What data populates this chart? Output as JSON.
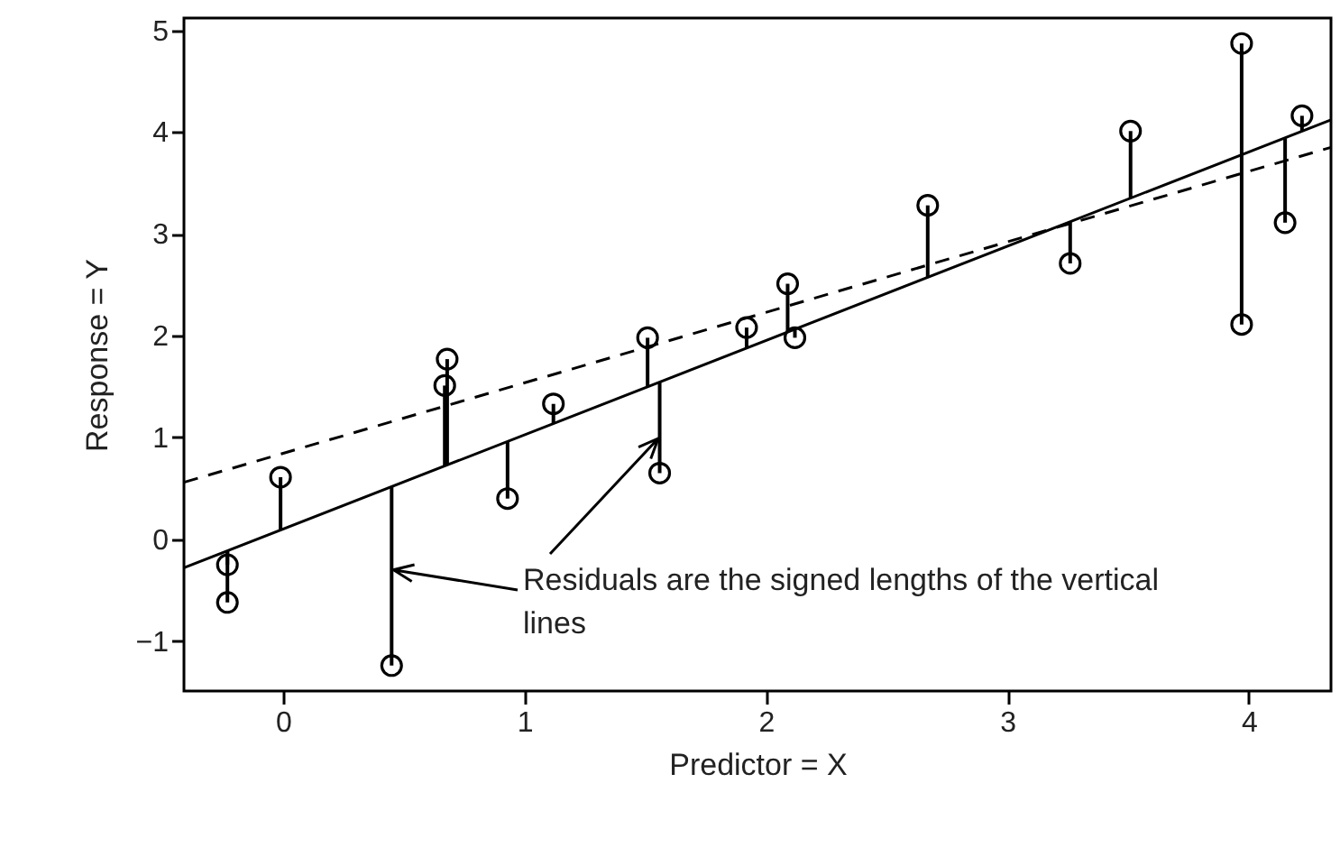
{
  "chart_data": {
    "type": "scatter",
    "xlabel": "Predictor = X",
    "ylabel": "Response = Y",
    "xlim": [
      -0.41,
      4.34
    ],
    "ylim": [
      -1.49,
      5.12
    ],
    "xticks": [
      0,
      1,
      2,
      3,
      4
    ],
    "yticks": [
      -1,
      0,
      1,
      2,
      3,
      4,
      5
    ],
    "grid": false,
    "marker": "circle",
    "annotations": [
      {
        "text": "Residuals are the signed lengths of the vertical lines",
        "x": 0.45,
        "y": -0.3
      }
    ],
    "series": [
      {
        "color": "#000000",
        "x": [
          -0.23,
          -0.23,
          -0.01,
          0.45,
          0.68,
          0.67,
          0.93,
          1.12,
          1.51,
          1.56,
          1.92,
          2.09,
          2.12,
          2.67,
          3.26,
          3.51,
          3.97,
          3.97,
          4.15,
          4.22
        ],
        "values": [
          -0.25,
          -0.62,
          0.61,
          -1.24,
          1.77,
          1.51,
          0.4,
          1.33,
          1.98,
          0.65,
          2.08,
          2.51,
          1.98,
          3.28,
          2.71,
          4.01,
          4.87,
          2.11,
          3.11,
          4.16
        ],
        "errors": [
          [
            -0.25,
            -0.11
          ],
          [
            -0.62,
            -0.11
          ],
          [
            0.09,
            0.61
          ],
          [
            -1.24,
            0.52
          ],
          [
            0.73,
            1.77
          ],
          [
            0.72,
            1.51
          ],
          [
            0.4,
            0.96
          ],
          [
            1.14,
            1.33
          ],
          [
            1.5,
            1.98
          ],
          [
            0.65,
            1.54
          ],
          [
            1.88,
            2.08
          ],
          [
            2.04,
            2.51
          ],
          [
            1.98,
            2.06
          ],
          [
            2.57,
            3.28
          ],
          [
            2.71,
            3.12
          ],
          [
            3.35,
            4.01
          ],
          [
            3.78,
            4.87
          ],
          [
            2.11,
            3.78
          ],
          [
            3.11,
            3.94
          ],
          [
            4.01,
            4.16
          ]
        ]
      },
      {
        "type": "line",
        "color": "#000000",
        "line_style": "solid",
        "marker": "none",
        "x": [
          -0.41,
          4.34
        ],
        "values": [
          -0.28,
          4.12
        ]
      },
      {
        "type": "line",
        "color": "#000000",
        "line_style": "dashed",
        "marker": "none",
        "x": [
          -0.41,
          4.34
        ],
        "values": [
          0.56,
          3.85
        ]
      }
    ]
  }
}
